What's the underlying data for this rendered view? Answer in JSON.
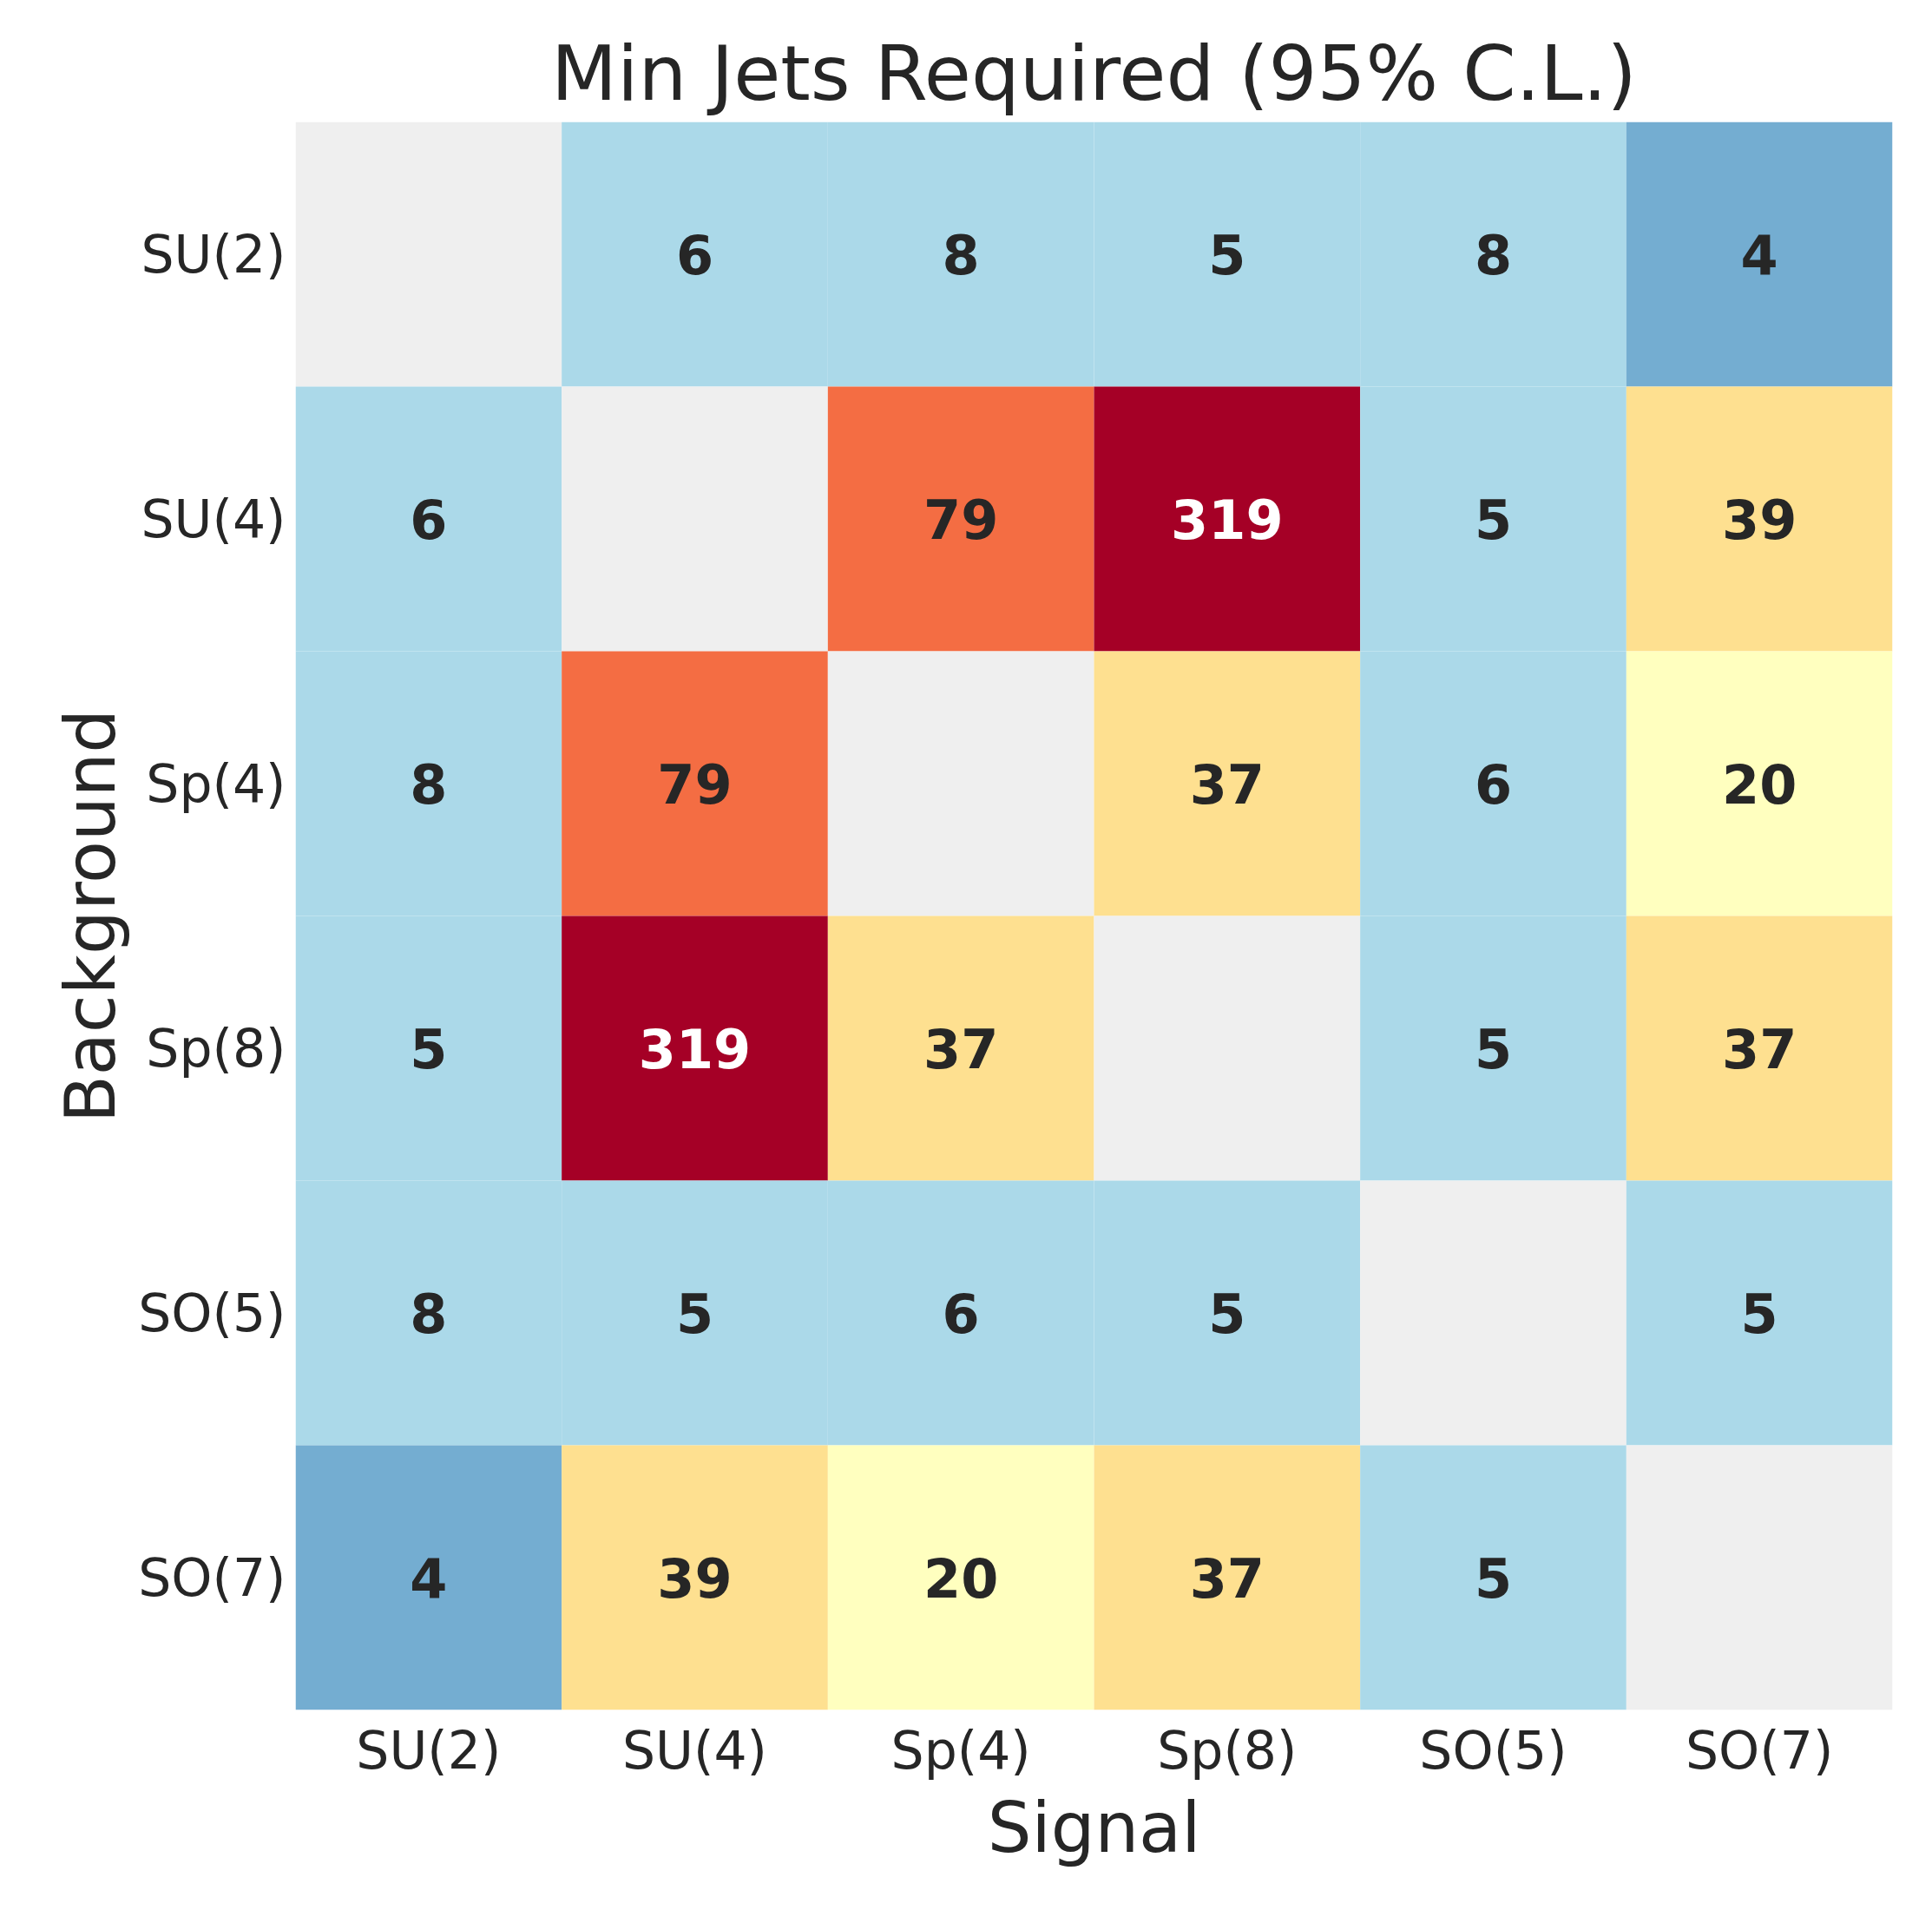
{
  "chart_data": {
    "type": "heatmap",
    "title": "Min Jets Required (95% C.L.)",
    "xlabel": "Signal",
    "ylabel": "Background",
    "categories": [
      "SU(2)",
      "SU(4)",
      "Sp(4)",
      "Sp(8)",
      "SO(5)",
      "SO(7)"
    ],
    "y_categories": [
      "SU(2)",
      "SU(4)",
      "Sp(4)",
      "Sp(8)",
      "SO(5)",
      "SO(7)"
    ],
    "cells": [
      [
        null,
        6,
        8,
        5,
        8,
        4
      ],
      [
        6,
        null,
        79,
        319,
        5,
        39
      ],
      [
        8,
        79,
        null,
        37,
        6,
        20
      ],
      [
        5,
        319,
        37,
        null,
        5,
        37
      ],
      [
        8,
        5,
        6,
        5,
        null,
        5
      ],
      [
        4,
        39,
        20,
        37,
        5,
        null
      ]
    ],
    "data_labels": true
  }
}
